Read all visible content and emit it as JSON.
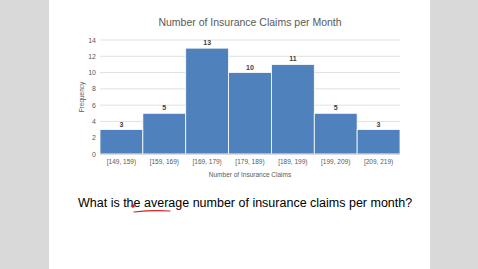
{
  "chart_data": {
    "type": "bar",
    "title": "Number of Insurance Claims per Month",
    "categories": [
      "[149, 159)",
      "[159, 169)",
      "[169, 179)",
      "[179, 189)",
      "[189, 199)",
      "[199, 209)",
      "[209, 219)"
    ],
    "values": [
      3,
      5,
      13,
      10,
      11,
      5,
      3
    ],
    "color": "#4f81bd",
    "x_label": "Number of Insurance Claims",
    "y_label": "Frequency",
    "ylim": [
      0,
      14
    ],
    "yticks": [
      0,
      2,
      4,
      6,
      8,
      10,
      12,
      14
    ],
    "grid": true,
    "data_labels": true,
    "annotations": [
      "What is the average number of insurance claims per month?"
    ]
  }
}
